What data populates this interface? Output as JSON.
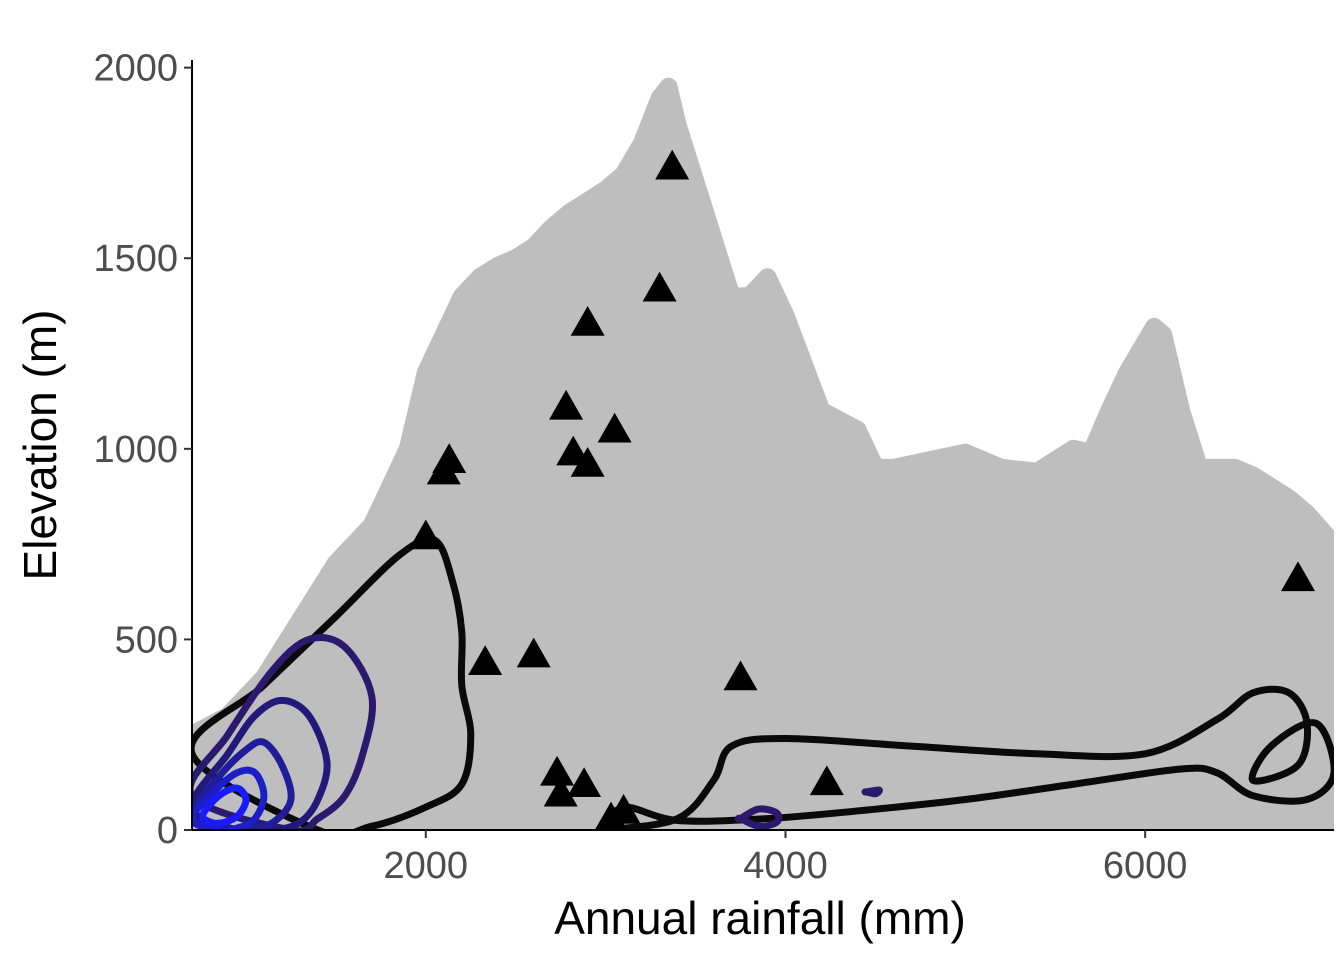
{
  "chart_data": {
    "type": "scatter",
    "xlabel": "Annual rainfall (mm)",
    "ylabel": "Elevation (m)",
    "xlim": [
      700,
      7050
    ],
    "ylim": [
      0,
      2020
    ],
    "x_ticks": [
      2000,
      4000,
      6000
    ],
    "x_tick_labels": [
      "2000",
      "4000",
      "6000"
    ],
    "y_ticks": [
      0,
      500,
      1000,
      1500,
      2000
    ],
    "y_tick_labels": [
      "0",
      "500",
      "1000",
      "1500",
      "2000"
    ],
    "grid": false,
    "legend": "none",
    "colors": {
      "background_points": "#bebebe",
      "triangles": "#000000",
      "contour_low": "#0a0a0a",
      "contour_mid": "#2a1a6e",
      "contour_high": "#1a1aff"
    },
    "background_region": {
      "description_series": "background point cloud envelope (upper boundary)",
      "x": [
        700,
        900,
        1100,
        1300,
        1500,
        1700,
        1800,
        1900,
        2000,
        2100,
        2200,
        2300,
        2400,
        2500,
        2600,
        2700,
        2800,
        2900,
        3000,
        3100,
        3200,
        3300,
        3350,
        3400,
        3500,
        3600,
        3700,
        3800,
        3900,
        4000,
        4200,
        4400,
        4500,
        4600,
        4800,
        5000,
        5200,
        5400,
        5600,
        5700,
        5800,
        5900,
        6000,
        6050,
        6100,
        6200,
        6300,
        6400,
        6500,
        6600,
        6700,
        6800,
        6900,
        7050
      ],
      "y": [
        250,
        300,
        400,
        550,
        700,
        800,
        900,
        1000,
        1200,
        1300,
        1400,
        1450,
        1480,
        1500,
        1530,
        1580,
        1620,
        1650,
        1680,
        1720,
        1800,
        1920,
        1950,
        1850,
        1700,
        1550,
        1400,
        1400,
        1450,
        1350,
        1100,
        1050,
        950,
        950,
        970,
        990,
        950,
        940,
        1000,
        990,
        1100,
        1200,
        1280,
        1320,
        1300,
        1100,
        950,
        950,
        950,
        930,
        900,
        870,
        830,
        750
      ]
    },
    "triangles": {
      "x": [
        2000,
        2100,
        2130,
        2330,
        2600,
        2730,
        2750,
        2780,
        2820,
        2880,
        2900,
        2900,
        3030,
        3050,
        3100,
        3300,
        3370,
        3750,
        4230,
        6850
      ],
      "y": [
        770,
        940,
        970,
        440,
        460,
        150,
        95,
        1110,
        990,
        120,
        960,
        1330,
        30,
        1050,
        50,
        1420,
        1740,
        400,
        125,
        660
      ]
    },
    "contours": [
      {
        "level": 1,
        "color": "#0a0a0a",
        "x": [
          700,
          1100,
          1500,
          1850,
          2050,
          2150,
          2200,
          2200,
          2250,
          2200,
          2000,
          1700,
          1400
        ],
        "y": [
          200,
          380,
          560,
          720,
          760,
          650,
          520,
          380,
          250,
          120,
          60,
          10,
          0
        ]
      },
      {
        "level": 1,
        "color": "#0a0a0a",
        "x": [
          3000,
          3400,
          3600,
          3700,
          4000,
          4700,
          5400,
          6000,
          6400,
          6600,
          6800,
          6900,
          6850,
          6600,
          6700,
          6950,
          7050,
          6900,
          6600,
          6400,
          6200,
          5600,
          5000,
          4400,
          3900,
          3400,
          3100,
          3000
        ],
        "y": [
          0,
          30,
          130,
          220,
          240,
          220,
          200,
          200,
          290,
          360,
          360,
          280,
          170,
          130,
          220,
          280,
          150,
          80,
          90,
          150,
          160,
          120,
          80,
          50,
          30,
          25,
          60,
          0
        ]
      },
      {
        "level": 2,
        "color": "#2a1a6e",
        "x": [
          700,
          900,
          1150,
          1350,
          1550,
          1700,
          1650,
          1550,
          1400,
          1250
        ],
        "y": [
          90,
          250,
          420,
          500,
          480,
          350,
          200,
          90,
          30,
          0
        ]
      },
      {
        "level": 2,
        "color": "#2a1a6e",
        "x": [
          3750,
          3850,
          3950,
          3950,
          3850,
          3750
        ],
        "y": [
          30,
          55,
          45,
          20,
          10,
          30
        ]
      },
      {
        "level": 2,
        "color": "#2a1a6e",
        "x": [
          4450,
          4520,
          4500,
          4450
        ],
        "y": [
          100,
          105,
          95,
          100
        ]
      },
      {
        "level": 3,
        "color": "#22197a",
        "x": [
          700,
          900,
          1050,
          1200,
          1350,
          1450,
          1400,
          1300,
          1150,
          950
        ],
        "y": [
          60,
          200,
          300,
          340,
          300,
          180,
          80,
          20,
          0,
          0
        ]
      },
      {
        "level": 4,
        "color": "#1f1d9a",
        "x": [
          700,
          850,
          1000,
          1100,
          1200,
          1250,
          1150,
          1000,
          850
        ],
        "y": [
          40,
          140,
          210,
          230,
          170,
          80,
          20,
          0,
          0
        ]
      },
      {
        "level": 5,
        "color": "#1c1fc5",
        "x": [
          700,
          820,
          950,
          1050,
          1100,
          1050,
          950,
          820
        ],
        "y": [
          30,
          100,
          150,
          150,
          90,
          30,
          5,
          0
        ]
      },
      {
        "level": 6,
        "color": "#1a1aff",
        "x": [
          760,
          850,
          950,
          1000,
          960,
          880,
          800
        ],
        "y": [
          40,
          90,
          110,
          80,
          40,
          20,
          20
        ]
      }
    ]
  }
}
